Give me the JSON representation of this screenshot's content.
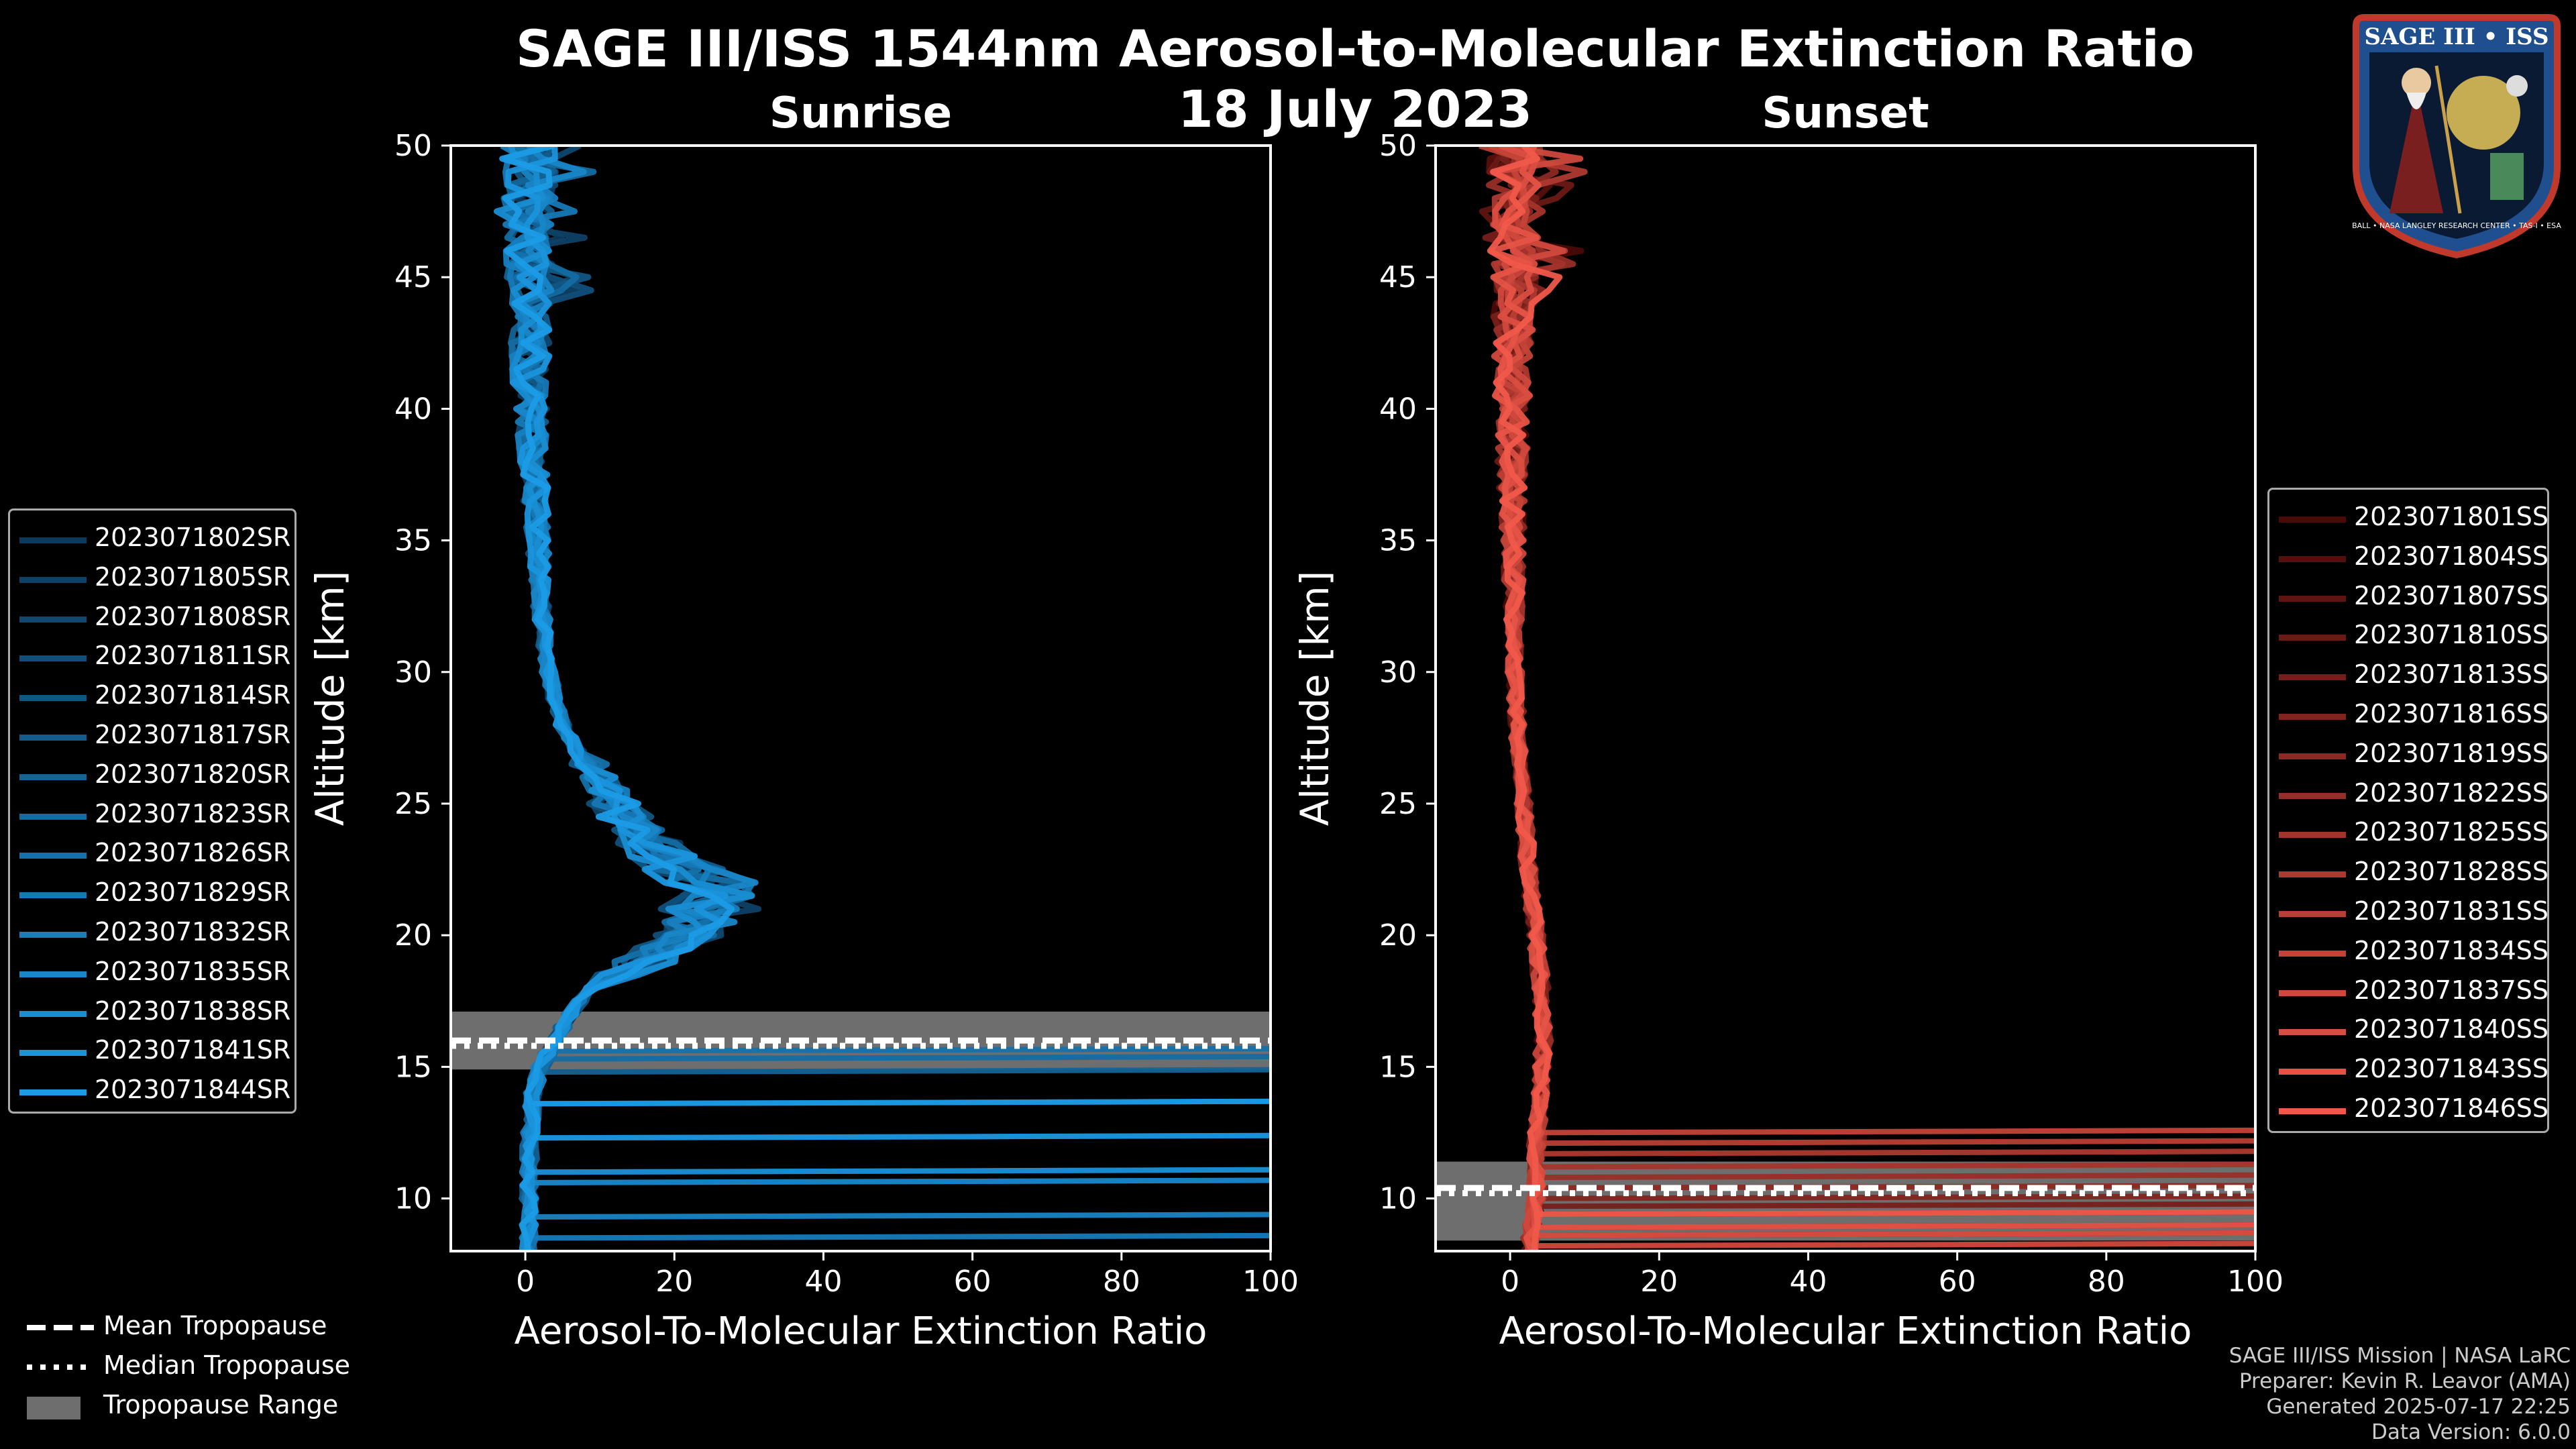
{
  "header": {
    "title": "SAGE III/ISS 1544nm Aerosol-to-Molecular Extinction Ratio",
    "date": "18 July 2023"
  },
  "chart_data": [
    {
      "type": "line",
      "panel": "Sunrise",
      "title": "Sunrise",
      "xlabel": "Aerosol-To-Molecular Extinction Ratio",
      "ylabel": "Altitude [km]",
      "xlim": [
        -10,
        100
      ],
      "ylim": [
        8,
        50
      ],
      "xticks": [
        0,
        20,
        40,
        60,
        80,
        100
      ],
      "yticks": [
        10,
        15,
        20,
        25,
        30,
        35,
        40,
        45,
        50
      ],
      "tropopause": {
        "mean_km": 16.0,
        "median_km": 15.8,
        "range_km": [
          14.9,
          17.1
        ]
      },
      "color_start": "#0d3a5c",
      "color_end": "#1b9be6",
      "series": [
        {
          "name": "2023071802SR"
        },
        {
          "name": "2023071805SR"
        },
        {
          "name": "2023071808SR"
        },
        {
          "name": "2023071811SR"
        },
        {
          "name": "2023071814SR"
        },
        {
          "name": "2023071817SR"
        },
        {
          "name": "2023071820SR"
        },
        {
          "name": "2023071823SR"
        },
        {
          "name": "2023071826SR"
        },
        {
          "name": "2023071829SR"
        },
        {
          "name": "2023071832SR"
        },
        {
          "name": "2023071835SR"
        },
        {
          "name": "2023071838SR"
        },
        {
          "name": "2023071841SR"
        },
        {
          "name": "2023071844SR"
        }
      ],
      "profile": {
        "altitude_km": [
          8,
          10,
          12,
          14,
          15,
          16,
          17,
          18,
          19,
          20,
          21,
          22,
          23,
          24,
          25,
          26,
          27,
          28,
          30,
          33,
          36,
          40,
          45,
          50
        ],
        "ratio": [
          0.5,
          0.5,
          0.6,
          1.0,
          2.0,
          4,
          6,
          9,
          16,
          22,
          25,
          24,
          19,
          15,
          12,
          10,
          7,
          5,
          3,
          2,
          1.5,
          0.8,
          0.5,
          0.5
        ]
      },
      "low_altitude_spikes_km": [
        8.5,
        9.3,
        10.6,
        11.0,
        12.3,
        13.6,
        14.8,
        15.3,
        15.6
      ]
    },
    {
      "type": "line",
      "panel": "Sunset",
      "title": "Sunset",
      "xlabel": "Aerosol-To-Molecular Extinction Ratio",
      "ylabel": "Altitude [km]",
      "xlim": [
        -10,
        100
      ],
      "ylim": [
        8,
        50
      ],
      "xticks": [
        0,
        20,
        40,
        60,
        80,
        100
      ],
      "yticks": [
        10,
        15,
        20,
        25,
        30,
        35,
        40,
        45,
        50
      ],
      "tropopause": {
        "mean_km": 10.4,
        "median_km": 10.2,
        "range_km": [
          8.4,
          11.4
        ]
      },
      "color_start": "#4a0a08",
      "color_end": "#f0584a",
      "series": [
        {
          "name": "2023071801SS"
        },
        {
          "name": "2023071804SS"
        },
        {
          "name": "2023071807SS"
        },
        {
          "name": "2023071810SS"
        },
        {
          "name": "2023071813SS"
        },
        {
          "name": "2023071816SS"
        },
        {
          "name": "2023071819SS"
        },
        {
          "name": "2023071822SS"
        },
        {
          "name": "2023071825SS"
        },
        {
          "name": "2023071828SS"
        },
        {
          "name": "2023071831SS"
        },
        {
          "name": "2023071834SS"
        },
        {
          "name": "2023071837SS"
        },
        {
          "name": "2023071840SS"
        },
        {
          "name": "2023071843SS"
        },
        {
          "name": "2023071846SS"
        }
      ],
      "profile": {
        "altitude_km": [
          8,
          9,
          10,
          11,
          12,
          13,
          14,
          16,
          18,
          20,
          22,
          25,
          28,
          30,
          33,
          36,
          40,
          45,
          50
        ],
        "ratio": [
          2.5,
          3,
          3.5,
          3.5,
          3.5,
          3.8,
          4.0,
          4.5,
          4.2,
          3.5,
          2.6,
          1.8,
          1.0,
          0.6,
          0.5,
          0.3,
          0.3,
          0.5,
          0.5
        ]
      },
      "low_altitude_spikes_km": [
        8.2,
        8.6,
        8.9,
        9.4,
        9.7,
        10.0,
        10.4,
        10.8,
        11.2,
        11.7,
        12.1,
        12.5
      ]
    }
  ],
  "tropopause_legend": {
    "mean_label": "Mean Tropopause",
    "median_label": "Median Tropopause",
    "range_label": "Tropopause Range",
    "range_color": "#6e6e6e"
  },
  "credits": {
    "line1": "SAGE III/ISS Mission | NASA LaRC",
    "line2": "Preparer: Kevin R. Leavor (AMA)",
    "line3": "Generated 2025-07-17 22:25",
    "line4": "Data Version: 6.0.0"
  },
  "logo": {
    "title": "SAGE III • ISS",
    "ring_text": "BALL • NASA LANGLEY RESEARCH CENTER • TAS-I • ESA",
    "ring_color": "#1f4f8f",
    "accent_color": "#c0392b"
  }
}
